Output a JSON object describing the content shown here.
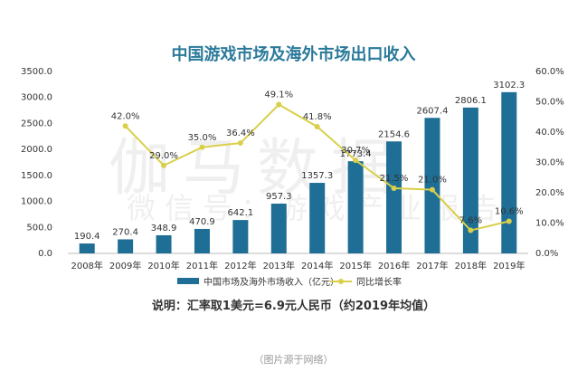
{
  "chart_data": {
    "type": "bar",
    "title": "中国游戏市场及海外市场出口收入",
    "categories": [
      "2008年",
      "2009年",
      "2010年",
      "2011年",
      "2012年",
      "2013年",
      "2014年",
      "2015年",
      "2016年",
      "2017年",
      "2018年",
      "2019年"
    ],
    "series": [
      {
        "name": "中国市场及海外市场收入（亿元）",
        "type": "bar",
        "axis": "left",
        "color": "#1f6e95",
        "values": [
          190.4,
          270.4,
          348.9,
          470.9,
          642.1,
          957.3,
          1357.3,
          1773.4,
          2154.6,
          2607.4,
          2806.1,
          3102.3
        ],
        "labels": [
          "190.4",
          "270.4",
          "348.9",
          "470.9",
          "642.1",
          "957.3",
          "1357.3",
          "1773.4",
          "2154.6",
          "2607.4",
          "2806.1",
          "3102.3"
        ]
      },
      {
        "name": "同比增长率",
        "type": "line",
        "axis": "right",
        "color": "#d9cf4a",
        "values": [
          null,
          42.0,
          29.0,
          35.0,
          36.4,
          49.1,
          41.8,
          30.7,
          21.5,
          21.0,
          7.6,
          10.6
        ],
        "labels": [
          "",
          "42.0%",
          "29.0%",
          "35.0%",
          "36.4%",
          "49.1%",
          "41.8%",
          "30.7%",
          "21.5%",
          "21.0%",
          "7.6%",
          "10.6%"
        ]
      }
    ],
    "ylim_left": [
      0,
      3500
    ],
    "yticks_left": [
      "0.0",
      "500.0",
      "1000.0",
      "1500.0",
      "2000.0",
      "2500.0",
      "3000.0",
      "3500.0"
    ],
    "ylim_right": [
      0,
      60
    ],
    "yticks_right": [
      "0.0%",
      "10.0%",
      "20.0%",
      "30.0%",
      "40.0%",
      "50.0%",
      "60.0%"
    ],
    "legend_position": "bottom"
  },
  "watermark": {
    "line1": "伽马数据",
    "line2": "微信号：游戏产业报告"
  },
  "note": "说明：汇率取1美元=6.9元人民币（约2019年均值）",
  "caption": "（图片源于网络）"
}
